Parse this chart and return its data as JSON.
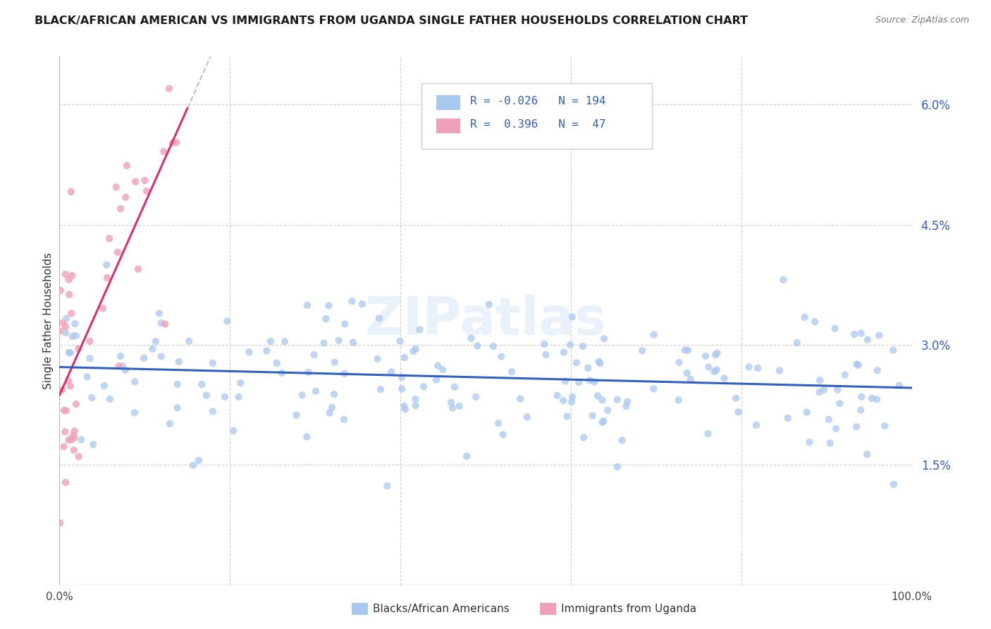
{
  "title": "BLACK/AFRICAN AMERICAN VS IMMIGRANTS FROM UGANDA SINGLE FATHER HOUSEHOLDS CORRELATION CHART",
  "source": "Source: ZipAtlas.com",
  "ylabel": "Single Father Households",
  "xlim": [
    0,
    100
  ],
  "ylim": [
    0,
    6.6
  ],
  "ytick_vals": [
    1.5,
    3.0,
    4.5,
    6.0
  ],
  "legend_label_blue": "Blacks/African Americans",
  "legend_label_pink": "Immigrants from Uganda",
  "r_blue": "-0.026",
  "n_blue": "194",
  "r_pink": "0.396",
  "n_pink": "47",
  "blue_color": "#a8c8f0",
  "pink_color": "#f0a0b8",
  "line_blue": "#3060c0",
  "line_pink": "#d83070",
  "trend_line_dashed_color": "#c0c0c0",
  "watermark": "ZIPatlas",
  "background_color": "#ffffff",
  "grid_color": "#cccccc",
  "axis_color": "#aaaaaa",
  "tick_label_color": "#3060c0",
  "title_color": "#1a1a1a",
  "source_color": "#777777",
  "bottom_label_color": "#333333"
}
